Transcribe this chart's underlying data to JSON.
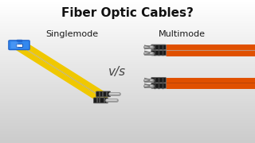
{
  "title": "Fiber Optic Cables?",
  "left_label": "Singlemode",
  "right_label": "Multimode",
  "vs_text": "v/s",
  "bg_color": "#f0f0f0",
  "bg_gradient_top": "#ffffff",
  "bg_gradient_bottom": "#cccccc",
  "title_color": "#111111",
  "label_color": "#1a1a1a",
  "vs_color": "#444444",
  "singlemode_cable_color": "#f0c800",
  "multimode_cable_color1": "#e05000",
  "multimode_cable_color2": "#cc4400",
  "connector_sc_color": "#3388ee",
  "connector_sc_dark": "#2266cc",
  "connector_sc_light": "#66aaff",
  "connector_st_color": "#333333",
  "connector_st_metal": "#aaaaaa",
  "connector_st_ring": "#888888",
  "title_fontsize": 11,
  "label_fontsize": 8,
  "vs_fontsize": 11
}
